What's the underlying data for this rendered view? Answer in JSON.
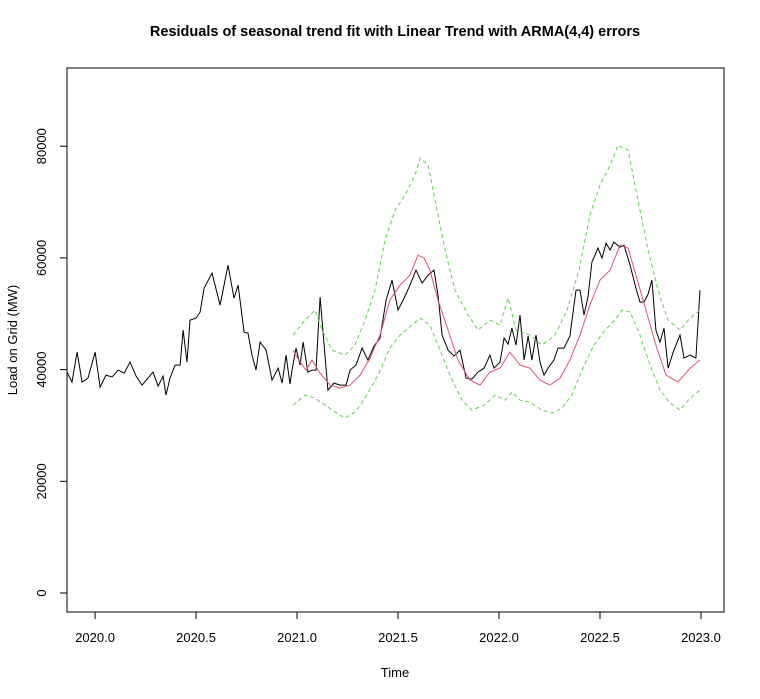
{
  "chart_data": {
    "type": "line",
    "title": "Residuals of seasonal trend fit with Linear Trend with ARMA(4,4) errors",
    "x_label": "Time",
    "y_label": "Load on Grid (MW)",
    "xlim": [
      2019.861,
      2023.114
    ],
    "ylim": [
      -3400,
      94000
    ],
    "xticks": [
      {
        "value": 2020,
        "label": "2020.0"
      },
      {
        "value": 2020.5,
        "label": "2020.5"
      },
      {
        "value": 2021,
        "label": "2021.0"
      },
      {
        "value": 2021.5,
        "label": "2021.5"
      },
      {
        "value": 2022,
        "label": "2022.0"
      },
      {
        "value": 2022.5,
        "label": "2022.5"
      },
      {
        "value": 2023,
        "label": "2023.0"
      }
    ],
    "yticks": [
      0,
      20000,
      40000,
      60000,
      80000
    ],
    "grid": false,
    "series": [
      {
        "color": "#000000",
        "dashed": false,
        "x": [
          2019.861,
          2019.886,
          2019.911,
          2019.936,
          2019.965,
          2020.0,
          2020.025,
          2020.054,
          2020.084,
          2020.114,
          2020.144,
          2020.173,
          2020.203,
          2020.233,
          2020.262,
          2020.287,
          2020.312,
          2020.337,
          2020.351,
          2020.371,
          2020.396,
          2020.421,
          2020.436,
          2020.455,
          2020.47,
          2020.5,
          2020.52,
          2020.54,
          2020.579,
          2020.619,
          2020.658,
          2020.688,
          2020.708,
          2020.738,
          2020.757,
          2020.777,
          2020.797,
          2020.817,
          2020.847,
          2020.876,
          2020.906,
          2020.926,
          2020.946,
          2020.965,
          2020.975,
          2020.995,
          2021.015,
          2021.03,
          2021.054,
          2021.074,
          2021.094,
          2021.114,
          2021.134,
          2021.153,
          2021.183,
          2021.213,
          2021.243,
          2021.262,
          2021.292,
          2021.322,
          2021.351,
          2021.381,
          2021.411,
          2021.441,
          2021.47,
          2021.5,
          2021.53,
          2021.559,
          2021.589,
          2021.619,
          2021.649,
          2021.678,
          2021.698,
          2021.718,
          2021.748,
          2021.777,
          2021.807,
          2021.837,
          2021.866,
          2021.896,
          2021.926,
          2021.955,
          2021.975,
          2022.005,
          2022.025,
          2022.045,
          2022.064,
          2022.084,
          2022.104,
          2022.124,
          2022.144,
          2022.163,
          2022.183,
          2022.203,
          2022.223,
          2022.243,
          2022.272,
          2022.292,
          2022.322,
          2022.351,
          2022.381,
          2022.401,
          2022.421,
          2022.441,
          2022.46,
          2022.49,
          2022.51,
          2022.53,
          2022.55,
          2022.569,
          2022.599,
          2022.619,
          2022.649,
          2022.678,
          2022.698,
          2022.718,
          2022.738,
          2022.757,
          2022.777,
          2022.797,
          2022.817,
          2022.837,
          2022.866,
          2022.896,
          2022.916,
          2022.946,
          2022.975,
          2022.995
        ],
        "values": [
          39550,
          37760,
          43130,
          37760,
          38480,
          43130,
          36870,
          39020,
          38660,
          39910,
          39370,
          41340,
          38840,
          37230,
          38480,
          39550,
          37050,
          38840,
          35440,
          38480,
          40810,
          40810,
          47070,
          41340,
          48860,
          49220,
          50290,
          54590,
          57270,
          51540,
          58700,
          52800,
          55120,
          46710,
          46530,
          42600,
          39910,
          44920,
          43490,
          38120,
          40270,
          37580,
          42600,
          37410,
          39910,
          43850,
          40810,
          44920,
          39550,
          39910,
          39910,
          52980,
          44380,
          36330,
          37580,
          37230,
          37230,
          39910,
          40810,
          43850,
          41700,
          44210,
          45640,
          52440,
          56020,
          50650,
          52800,
          55120,
          57810,
          55480,
          56910,
          57810,
          53330,
          46170,
          43490,
          42420,
          43490,
          38480,
          38300,
          39550,
          40270,
          42600,
          40270,
          41340,
          45640,
          44560,
          47430,
          44380,
          49750,
          41700,
          46000,
          41700,
          46170,
          41340,
          39020,
          40270,
          41700,
          43850,
          43850,
          46000,
          54230,
          54230,
          49750,
          53150,
          59240,
          61750,
          59960,
          62640,
          61390,
          62820,
          61930,
          62280,
          58700,
          54590,
          52080,
          52080,
          53510,
          56020,
          47070,
          44920,
          47430,
          40270,
          43490,
          46170,
          42060,
          42600,
          42060,
          54230
        ]
      },
      {
        "color": "#DF536B",
        "dashed": false,
        "x": [
          2020.98,
          2021.015,
          2021.045,
          2021.074,
          2021.114,
          2021.163,
          2021.213,
          2021.262,
          2021.312,
          2021.361,
          2021.411,
          2021.46,
          2021.51,
          2021.559,
          2021.599,
          2021.629,
          2021.658,
          2021.698,
          2021.748,
          2021.797,
          2021.856,
          2021.906,
          2021.955,
          2022.005,
          2022.054,
          2022.104,
          2022.153,
          2022.203,
          2022.252,
          2022.302,
          2022.351,
          2022.401,
          2022.45,
          2022.5,
          2022.55,
          2022.599,
          2022.639,
          2022.678,
          2022.728,
          2022.777,
          2022.827,
          2022.886,
          2022.946,
          2022.995
        ],
        "values": [
          43490,
          41340,
          39910,
          41700,
          39370,
          37230,
          36690,
          37230,
          39020,
          42060,
          46170,
          52440,
          55120,
          56910,
          60490,
          59960,
          57810,
          52440,
          47070,
          41700,
          38120,
          37230,
          39550,
          40270,
          43130,
          40810,
          40270,
          38120,
          37230,
          38480,
          41700,
          46170,
          51540,
          56020,
          57810,
          62280,
          61750,
          56910,
          50650,
          44380,
          39020,
          37760,
          40270,
          41700
        ]
      },
      {
        "color": "#61D04F",
        "dashed": true,
        "x": [
          2020.98,
          2021.04,
          2021.089,
          2021.124,
          2021.173,
          2021.238,
          2021.287,
          2021.337,
          2021.386,
          2021.436,
          2021.485,
          2021.535,
          2021.584,
          2021.609,
          2021.649,
          2021.688,
          2021.733,
          2021.782,
          2021.847,
          2021.896,
          2021.955,
          2022.005,
          2022.045,
          2022.084,
          2022.153,
          2022.213,
          2022.277,
          2022.337,
          2022.396,
          2022.45,
          2022.5,
          2022.55,
          2022.589,
          2022.639,
          2022.688,
          2022.738,
          2022.787,
          2022.837,
          2022.896,
          2022.946,
          2022.995
        ],
        "values": [
          46170,
          48860,
          50650,
          47070,
          43490,
          42600,
          44380,
          48860,
          54230,
          63180,
          68540,
          71230,
          74810,
          77850,
          76600,
          69440,
          61390,
          54230,
          49750,
          47070,
          48860,
          47960,
          52800,
          47070,
          46170,
          44380,
          46170,
          50650,
          57810,
          67650,
          73020,
          76600,
          80180,
          79280,
          70330,
          61390,
          54230,
          48860,
          47070,
          49220,
          50650
        ]
      },
      {
        "color": "#61D04F",
        "dashed": true,
        "x": [
          2020.98,
          2021.04,
          2021.089,
          2021.139,
          2021.188,
          2021.238,
          2021.287,
          2021.337,
          2021.401,
          2021.46,
          2021.51,
          2021.569,
          2021.609,
          2021.658,
          2021.708,
          2021.757,
          2021.817,
          2021.866,
          2021.926,
          2021.98,
          2022.03,
          2022.064,
          2022.104,
          2022.153,
          2022.213,
          2022.262,
          2022.312,
          2022.361,
          2022.411,
          2022.47,
          2022.525,
          2022.574,
          2022.609,
          2022.649,
          2022.698,
          2022.748,
          2022.797,
          2022.847,
          2022.896,
          2022.946,
          2022.995
        ],
        "values": [
          33650,
          35440,
          34900,
          33650,
          32390,
          31320,
          32390,
          34900,
          39020,
          43850,
          46170,
          47960,
          49220,
          47960,
          43490,
          39020,
          34540,
          32750,
          33650,
          35440,
          34540,
          35970,
          34540,
          34180,
          32750,
          32210,
          33110,
          35440,
          39910,
          44380,
          47070,
          48860,
          50650,
          50290,
          46170,
          40810,
          36330,
          34000,
          32750,
          34900,
          36330
        ]
      }
    ]
  }
}
